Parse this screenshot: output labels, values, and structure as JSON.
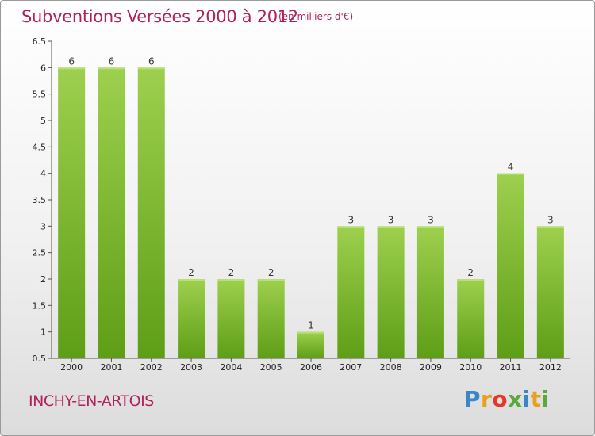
{
  "header": {
    "title": "Subventions Versées 2000 à 2012",
    "unit_note": "(en milliers d'€)"
  },
  "footer": {
    "place_name": "INCHY-EN-ARTOIS",
    "brand": [
      "P",
      "r",
      "o",
      "x",
      "i",
      "t",
      "i"
    ],
    "brand_colors": [
      "#3a86c8",
      "#e8a020",
      "#e23a2a",
      "#5aa93c",
      "#3a86c8",
      "#e8a020",
      "#5aa93c"
    ]
  },
  "chart_data": {
    "type": "bar",
    "title": "Subventions Versées 2000 à 2012",
    "subtitle": "(en milliers d'€)",
    "xlabel": "",
    "ylabel": "",
    "categories": [
      "2000",
      "2001",
      "2002",
      "2003",
      "2004",
      "2005",
      "2006",
      "2007",
      "2008",
      "2009",
      "2010",
      "2011",
      "2012"
    ],
    "values": [
      6,
      6,
      6,
      2,
      2,
      2,
      1,
      3,
      3,
      3,
      2,
      4,
      3
    ],
    "ylim": [
      0.5,
      6.5
    ],
    "yticks": [
      0.5,
      1,
      1.5,
      2,
      2.5,
      3,
      3.5,
      4,
      4.5,
      5,
      5.5,
      6,
      6.5
    ],
    "ytick_labels": [
      "0.5",
      "1",
      "1.5",
      "2",
      "2.5",
      "3",
      "3.5",
      "4",
      "4.5",
      "5",
      "5.5",
      "6",
      "6.5"
    ],
    "grid": false,
    "bar_color_top": "#9dd04e",
    "bar_color_bottom": "#5e9e16"
  }
}
